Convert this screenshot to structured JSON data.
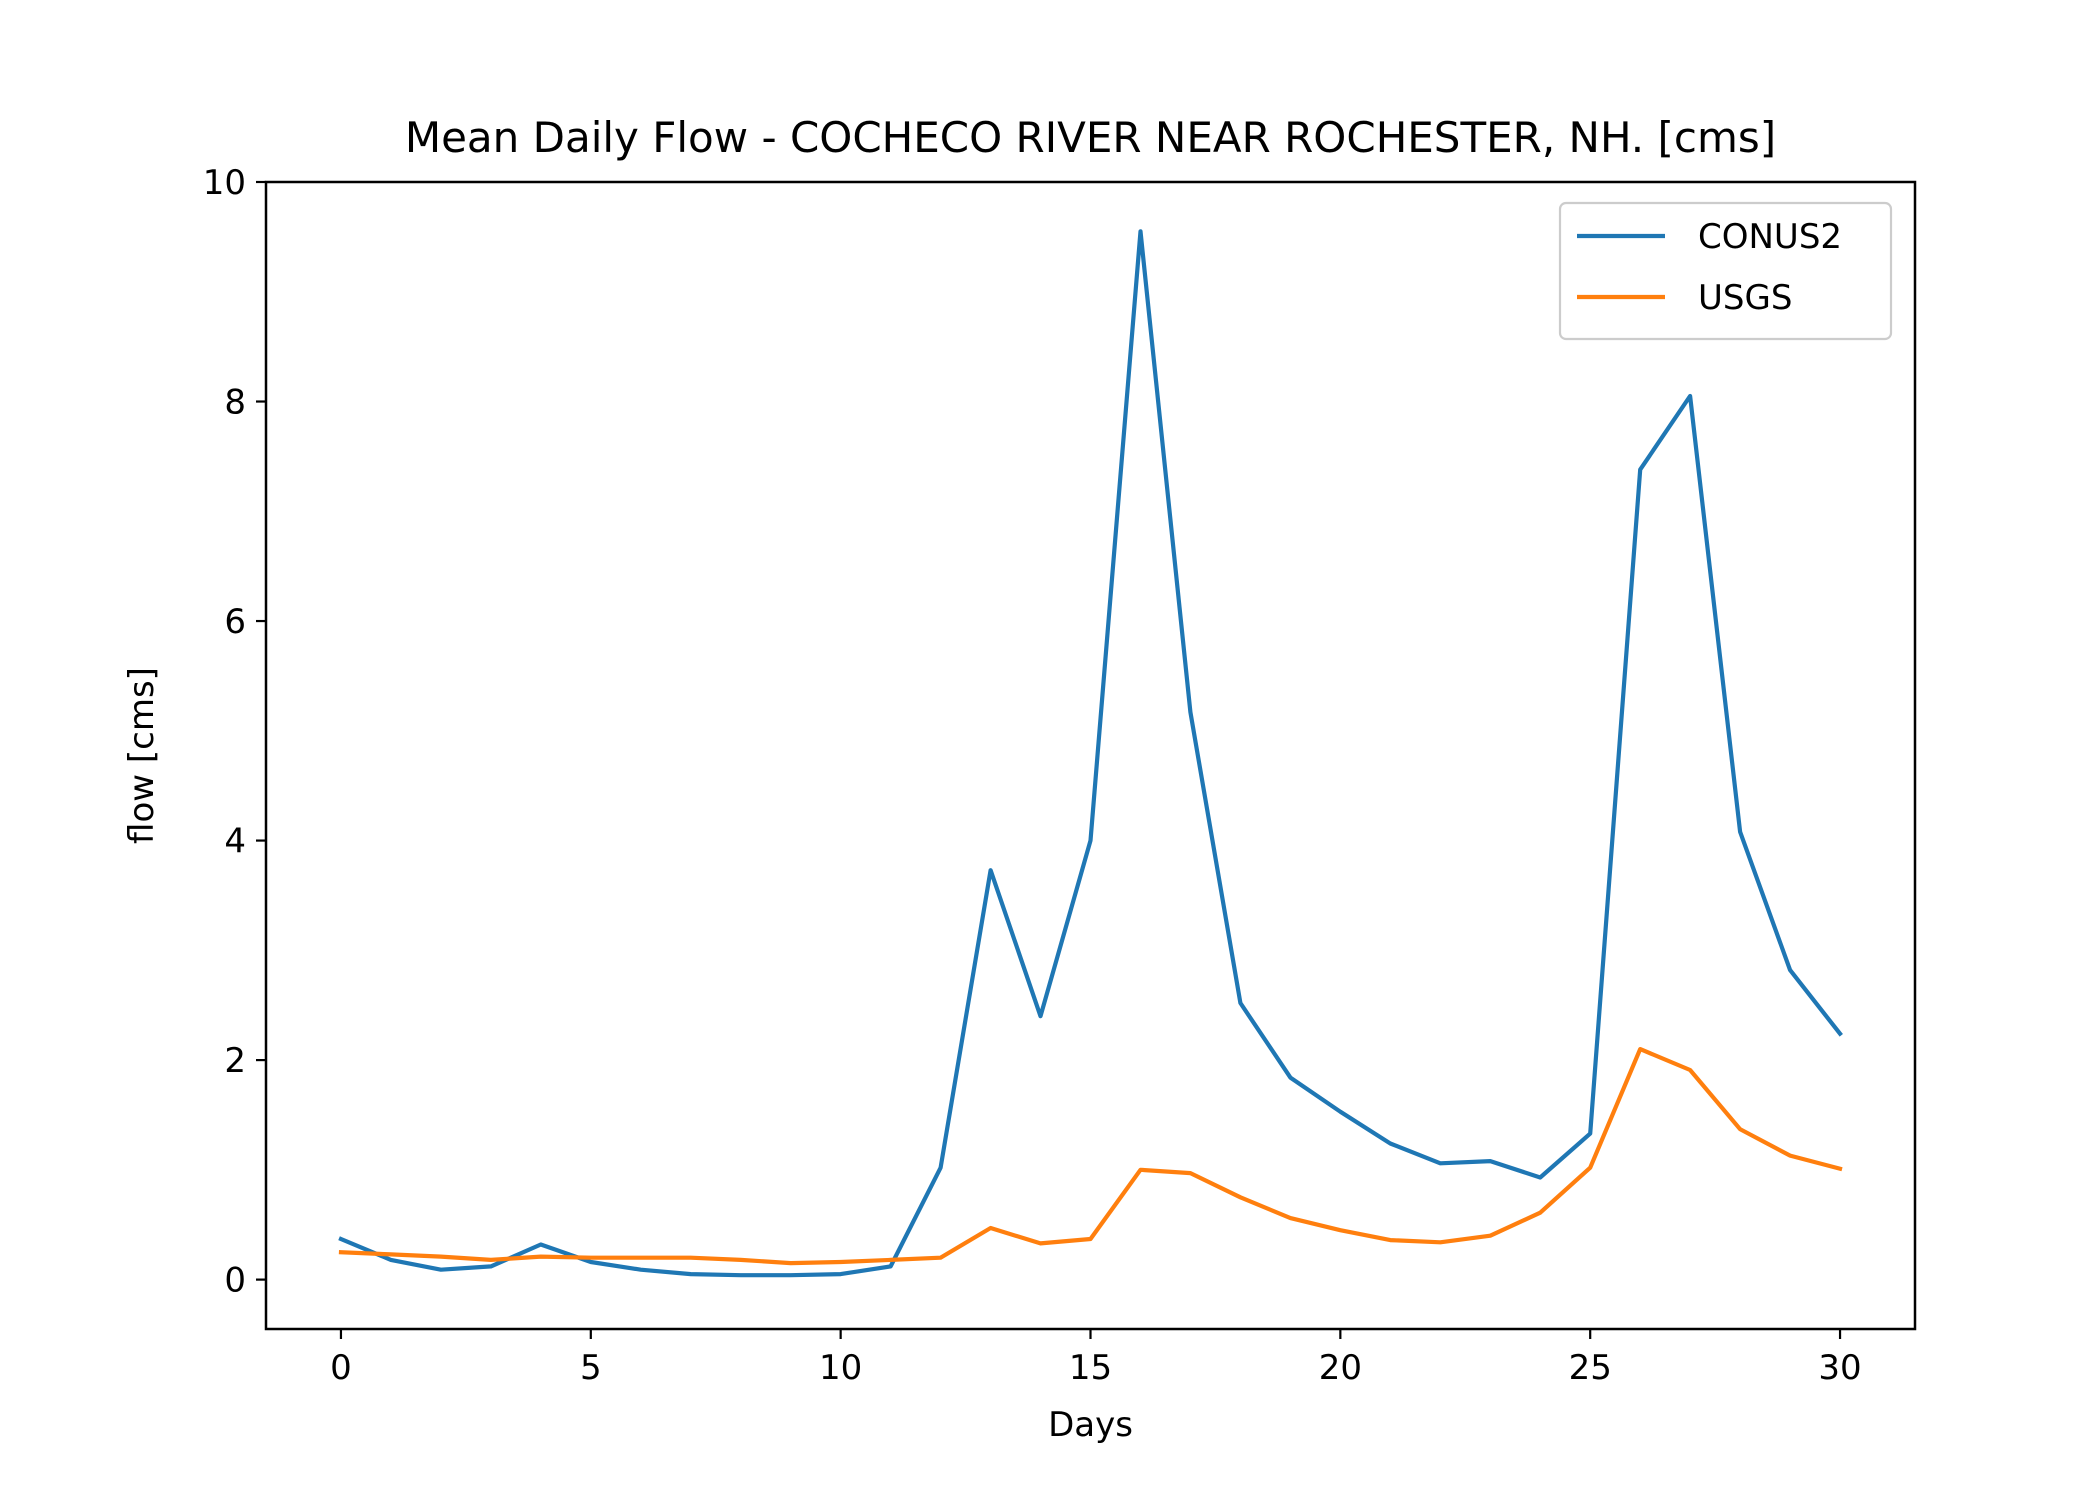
{
  "chart_data": {
    "type": "line",
    "title": "Mean Daily Flow - COCHECO RIVER NEAR ROCHESTER, NH. [cms]",
    "xlabel": "Days",
    "ylabel": "flow [cms]",
    "xlim": [
      -1.5,
      31.5
    ],
    "ylim": [
      -0.45,
      10.0
    ],
    "xticks": [
      0,
      5,
      10,
      15,
      20,
      25,
      30
    ],
    "yticks": [
      0,
      2,
      4,
      6,
      8,
      10
    ],
    "xtick_labels": [
      "0",
      "5",
      "10",
      "15",
      "20",
      "25",
      "30"
    ],
    "ytick_labels": [
      "0",
      "2",
      "4",
      "6",
      "8",
      "10"
    ],
    "grid": false,
    "legend_position": "upper right",
    "x": [
      0,
      1,
      2,
      3,
      4,
      5,
      6,
      7,
      8,
      9,
      10,
      11,
      12,
      13,
      14,
      15,
      16,
      17,
      18,
      19,
      20,
      21,
      22,
      23,
      24,
      25,
      26,
      27,
      28,
      29,
      30
    ],
    "series": [
      {
        "name": "CONUS2",
        "color": "#1f77b4",
        "values": [
          0.37,
          0.18,
          0.09,
          0.12,
          0.32,
          0.16,
          0.09,
          0.05,
          0.04,
          0.04,
          0.05,
          0.12,
          1.02,
          3.73,
          2.4,
          4.0,
          9.55,
          5.17,
          2.52,
          1.84,
          1.53,
          1.24,
          1.06,
          1.08,
          0.93,
          1.33,
          7.38,
          8.05,
          4.08,
          2.82,
          2.24
        ]
      },
      {
        "name": "USGS",
        "color": "#ff7f0e",
        "values": [
          0.25,
          0.23,
          0.21,
          0.18,
          0.21,
          0.2,
          0.2,
          0.2,
          0.18,
          0.15,
          0.16,
          0.18,
          0.2,
          0.47,
          0.33,
          0.37,
          1.0,
          0.97,
          0.75,
          0.56,
          0.45,
          0.36,
          0.34,
          0.4,
          0.61,
          1.02,
          2.1,
          1.91,
          1.37,
          1.13,
          1.01
        ]
      }
    ]
  }
}
